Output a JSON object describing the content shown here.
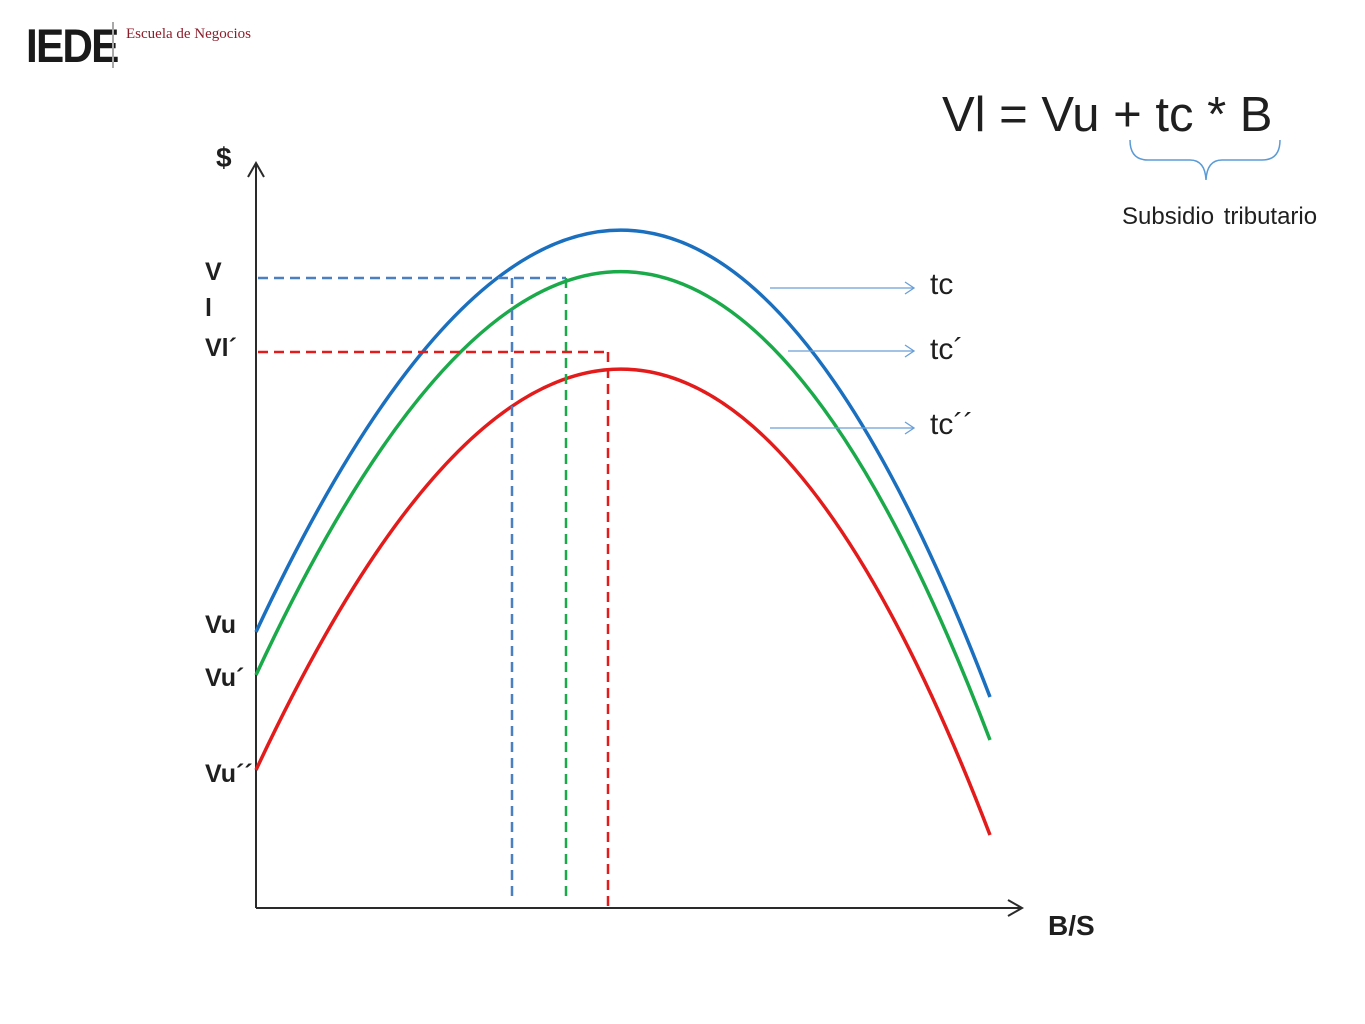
{
  "logo": {
    "mark": "IEDE",
    "tagline": "Escuela de Negocios",
    "color": "#8c1d2a"
  },
  "formula": {
    "text": "Vl = Vu + tc * B",
    "brace_label": "Subsidio tributario"
  },
  "axes": {
    "y_label": "$",
    "x_label": "B/S"
  },
  "y_labels": {
    "vl_line1": "V",
    "vl_line2": "l",
    "vl_prime": "Vl´",
    "vu": "Vu",
    "vu_prime": "Vu´",
    "vu_double_prime": "Vu´´"
  },
  "curves": [
    {
      "id": "tc",
      "label": "tc",
      "color": "#1a6fbf"
    },
    {
      "id": "tc_prime",
      "label": "tc´",
      "color": "#1aaa4a"
    },
    {
      "id": "tc_double_prime",
      "label": "tc´´",
      "color": "#e31b1b"
    }
  ],
  "colors": {
    "axis": "#2a2a2a",
    "pointer": "#6a9fd8",
    "brace": "#5b9bd5",
    "dash_blue": "#4a7fc0"
  }
}
